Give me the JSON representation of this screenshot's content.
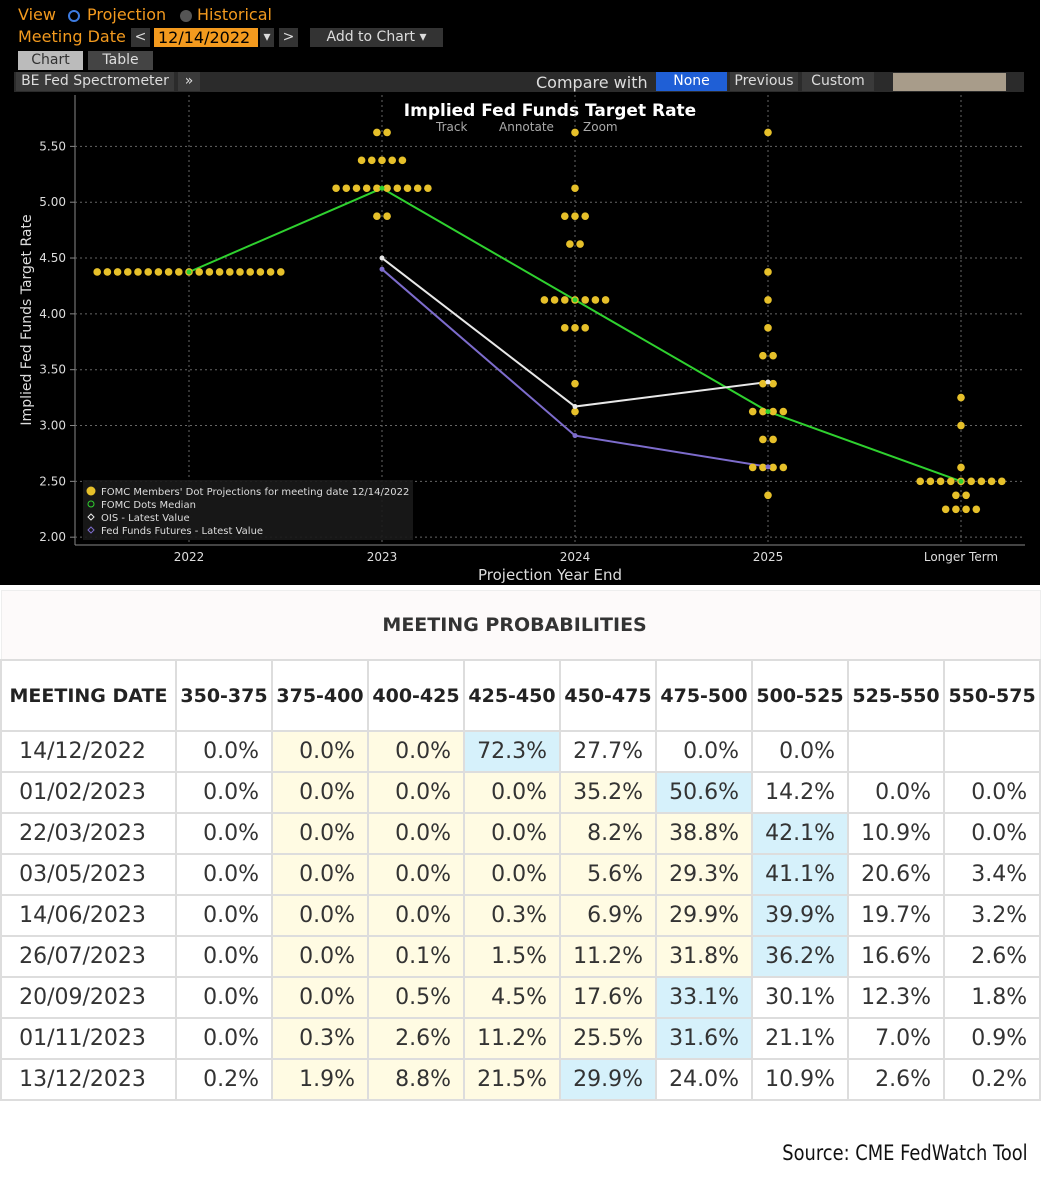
{
  "ui": {
    "view": "View",
    "projection": "Projection",
    "historical": "Historical",
    "meeting_date_label": "Meeting Date",
    "meeting_date": "12/14/2022",
    "add_to_chart": "Add to Chart",
    "tabs": [
      "Chart",
      "Table"
    ],
    "panel": "BE Fed Spectrometer",
    "compare_with": "Compare with",
    "compare_options": [
      "None",
      "Previous",
      "Custom"
    ],
    "tools": [
      "Track",
      "Annotate",
      "Zoom"
    ]
  },
  "chart_data": {
    "type": "dot-plot",
    "title": "Implied Fed Funds Target Rate",
    "y_label": "Implied Fed Funds Target Rate",
    "x_label": "Projection Year End",
    "categories": [
      "2022",
      "2023",
      "2024",
      "2025",
      "Longer Term"
    ],
    "ylim": [
      1.93,
      5.96
    ],
    "yticks": [
      {
        "value": 2,
        "label": "2.00"
      },
      {
        "value": 2.5,
        "label": "2.50"
      },
      {
        "value": 3,
        "label": "3.00"
      },
      {
        "value": 3.5,
        "label": "3.50"
      },
      {
        "value": 4,
        "label": "4.00"
      },
      {
        "value": 4.5,
        "label": "4.50"
      },
      {
        "value": 5,
        "label": "5.00"
      },
      {
        "value": 5.5,
        "label": "5.50"
      }
    ],
    "grid": true,
    "dots": {
      "name": "FOMC Members' Dot Projections for meeting date 12/14/2022",
      "color": "#e6c02a",
      "points": [
        {
          "x": "2022",
          "y": 4.375,
          "count": 19
        },
        {
          "x": "2023",
          "y": 5.625,
          "count": 2
        },
        {
          "x": "2023",
          "y": 5.375,
          "count": 5
        },
        {
          "x": "2023",
          "y": 5.125,
          "count": 10
        },
        {
          "x": "2023",
          "y": 4.875,
          "count": 2
        },
        {
          "x": "2024",
          "y": 5.625,
          "count": 1
        },
        {
          "x": "2024",
          "y": 5.125,
          "count": 1
        },
        {
          "x": "2024",
          "y": 4.875,
          "count": 3
        },
        {
          "x": "2024",
          "y": 4.625,
          "count": 2
        },
        {
          "x": "2024",
          "y": 4.125,
          "count": 7
        },
        {
          "x": "2024",
          "y": 3.875,
          "count": 3
        },
        {
          "x": "2024",
          "y": 3.375,
          "count": 1
        },
        {
          "x": "2024",
          "y": 3.125,
          "count": 1
        },
        {
          "x": "2025",
          "y": 5.625,
          "count": 1
        },
        {
          "x": "2025",
          "y": 4.375,
          "count": 1
        },
        {
          "x": "2025",
          "y": 4.125,
          "count": 1
        },
        {
          "x": "2025",
          "y": 3.875,
          "count": 1
        },
        {
          "x": "2025",
          "y": 3.625,
          "count": 2
        },
        {
          "x": "2025",
          "y": 3.375,
          "count": 2
        },
        {
          "x": "2025",
          "y": 3.125,
          "count": 4
        },
        {
          "x": "2025",
          "y": 2.875,
          "count": 2
        },
        {
          "x": "2025",
          "y": 2.625,
          "count": 4
        },
        {
          "x": "2025",
          "y": 2.375,
          "count": 1
        },
        {
          "x": "Longer Term",
          "y": 3.25,
          "count": 1
        },
        {
          "x": "Longer Term",
          "y": 3.0,
          "count": 1
        },
        {
          "x": "Longer Term",
          "y": 2.625,
          "count": 1
        },
        {
          "x": "Longer Term",
          "y": 2.5,
          "count": 9
        },
        {
          "x": "Longer Term",
          "y": 2.375,
          "count": 2
        },
        {
          "x": "Longer Term",
          "y": 2.25,
          "count": 4
        }
      ]
    },
    "series": [
      {
        "name": "FOMC Dots Median",
        "color": "#2fd12f",
        "values": [
          4.375,
          5.125,
          4.125,
          3.125,
          2.5
        ]
      },
      {
        "name": "OIS - Latest Value",
        "color": "#e8e8e8",
        "values": [
          null,
          4.5,
          3.17,
          3.39,
          null
        ]
      },
      {
        "name": "Fed Funds Futures - Latest Value",
        "color": "#7d6ccc",
        "values": [
          null,
          4.4,
          2.91,
          2.63,
          null
        ]
      }
    ]
  },
  "table": {
    "title": "MEETING PROBABILITIES",
    "header": [
      "MEETING DATE",
      "350-375",
      "375-400",
      "400-425",
      "425-450",
      "450-475",
      "475-500",
      "500-525",
      "525-550",
      "550-575"
    ],
    "rows": [
      [
        "14/12/2022",
        "0.0%",
        "0.0%",
        "0.0%",
        "72.3%",
        "27.7%",
        "0.0%",
        "0.0%",
        null,
        null
      ],
      [
        "01/02/2023",
        "0.0%",
        "0.0%",
        "0.0%",
        "0.0%",
        "35.2%",
        "50.6%",
        "14.2%",
        "0.0%",
        "0.0%"
      ],
      [
        "22/03/2023",
        "0.0%",
        "0.0%",
        "0.0%",
        "0.0%",
        "8.2%",
        "38.8%",
        "42.1%",
        "10.9%",
        "0.0%"
      ],
      [
        "03/05/2023",
        "0.0%",
        "0.0%",
        "0.0%",
        "0.0%",
        "5.6%",
        "29.3%",
        "41.1%",
        "20.6%",
        "3.4%"
      ],
      [
        "14/06/2023",
        "0.0%",
        "0.0%",
        "0.0%",
        "0.3%",
        "6.9%",
        "29.9%",
        "39.9%",
        "19.7%",
        "3.2%"
      ],
      [
        "26/07/2023",
        "0.0%",
        "0.0%",
        "0.1%",
        "1.5%",
        "11.2%",
        "31.8%",
        "36.2%",
        "16.6%",
        "2.6%"
      ],
      [
        "20/09/2023",
        "0.0%",
        "0.0%",
        "0.5%",
        "4.5%",
        "17.6%",
        "33.1%",
        "30.1%",
        "12.3%",
        "1.8%"
      ],
      [
        "01/11/2023",
        "0.0%",
        "0.3%",
        "2.6%",
        "11.2%",
        "25.5%",
        "31.6%",
        "21.1%",
        "7.0%",
        "0.9%"
      ],
      [
        "13/12/2023",
        "0.2%",
        "1.9%",
        "8.8%",
        "21.5%",
        "29.9%",
        "24.0%",
        "10.9%",
        "2.6%",
        "0.2%"
      ]
    ]
  },
  "source": "Source: CME FedWatch Tool"
}
